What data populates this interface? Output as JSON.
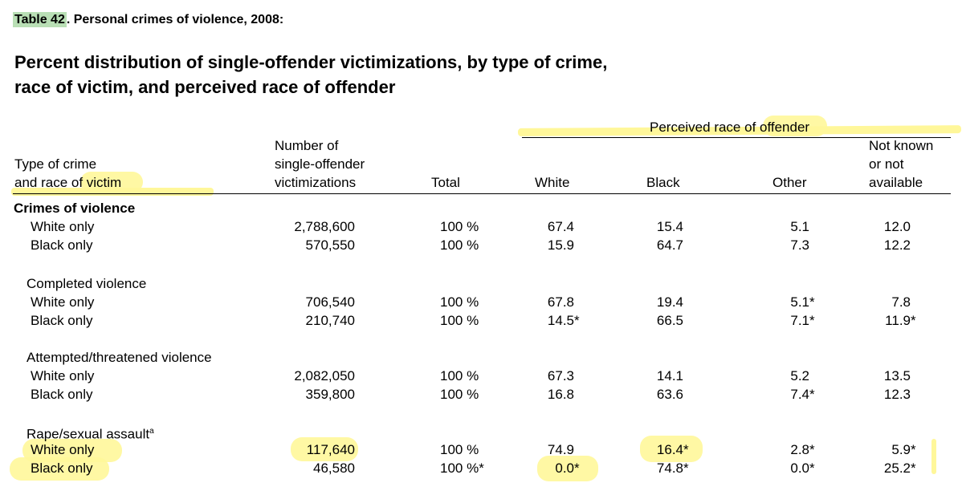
{
  "table_label": "Table 42",
  "table_title_rest": ". Personal crimes of violence, 2008:",
  "subtitle_line1": "Percent distribution of single-offender victimizations, by type of crime,",
  "subtitle_line2": "race of victim, and perceived race of offender",
  "headers": {
    "type_line1": "Type of crime",
    "type_line2": "and race of victim",
    "number_line1": "Number of",
    "number_line2": "single-offender",
    "number_line3": "victimizations",
    "total": "Total",
    "perceived_group": "Perceived race of offender",
    "white": "White",
    "black": "Black",
    "other": "Other",
    "notknown_line1": "Not known",
    "notknown_line2": "or not",
    "notknown_line3": "available"
  },
  "sections": [
    {
      "title": "Crimes of violence",
      "rows": [
        {
          "label": "White only",
          "number": "2,788,600",
          "total": "100 %",
          "white": "67.4",
          "black": "15.4",
          "other": "5.1",
          "unknown": "12.0"
        },
        {
          "label": "Black only",
          "number": "570,550",
          "total": "100 %",
          "white": "15.9",
          "black": "64.7",
          "other": "7.3",
          "unknown": "12.2"
        }
      ]
    },
    {
      "title": "Completed violence",
      "rows": [
        {
          "label": "White only",
          "number": "706,540",
          "total": "100 %",
          "white": "67.8",
          "black": "19.4",
          "other": "5.1 *",
          "unknown": "7.8"
        },
        {
          "label": "Black only",
          "number": "210,740",
          "total": "100 %",
          "white": "14.5 *",
          "black": "66.5",
          "other": "7.1 *",
          "unknown": "11.9 *"
        }
      ]
    },
    {
      "title": "Attempted/threatened violence",
      "rows": [
        {
          "label": "White only",
          "number": "2,082,050",
          "total": "100 %",
          "white": "67.3",
          "black": "14.1",
          "other": "5.2",
          "unknown": "13.5"
        },
        {
          "label": "Black only",
          "number": "359,800",
          "total": "100 %",
          "white": "16.8",
          "black": "63.6",
          "other": "7.4 *",
          "unknown": "12.3"
        }
      ]
    },
    {
      "title": "Rape/sexual assault",
      "title_sup": "a",
      "rows": [
        {
          "label": "White only",
          "number": "117,640",
          "total": "100 %",
          "white": "74.9",
          "black": "16.4 *",
          "other": "2.8 *",
          "unknown": "5.9 *"
        },
        {
          "label": "Black only",
          "number": "46,580",
          "total": "100 %*",
          "white": "0.0 *",
          "black": "74.8 *",
          "other": "0.0 *",
          "unknown": "25.2 *"
        }
      ]
    }
  ],
  "highlight_color": "#fff79a",
  "label_highlight_color": "#b9dfb5"
}
